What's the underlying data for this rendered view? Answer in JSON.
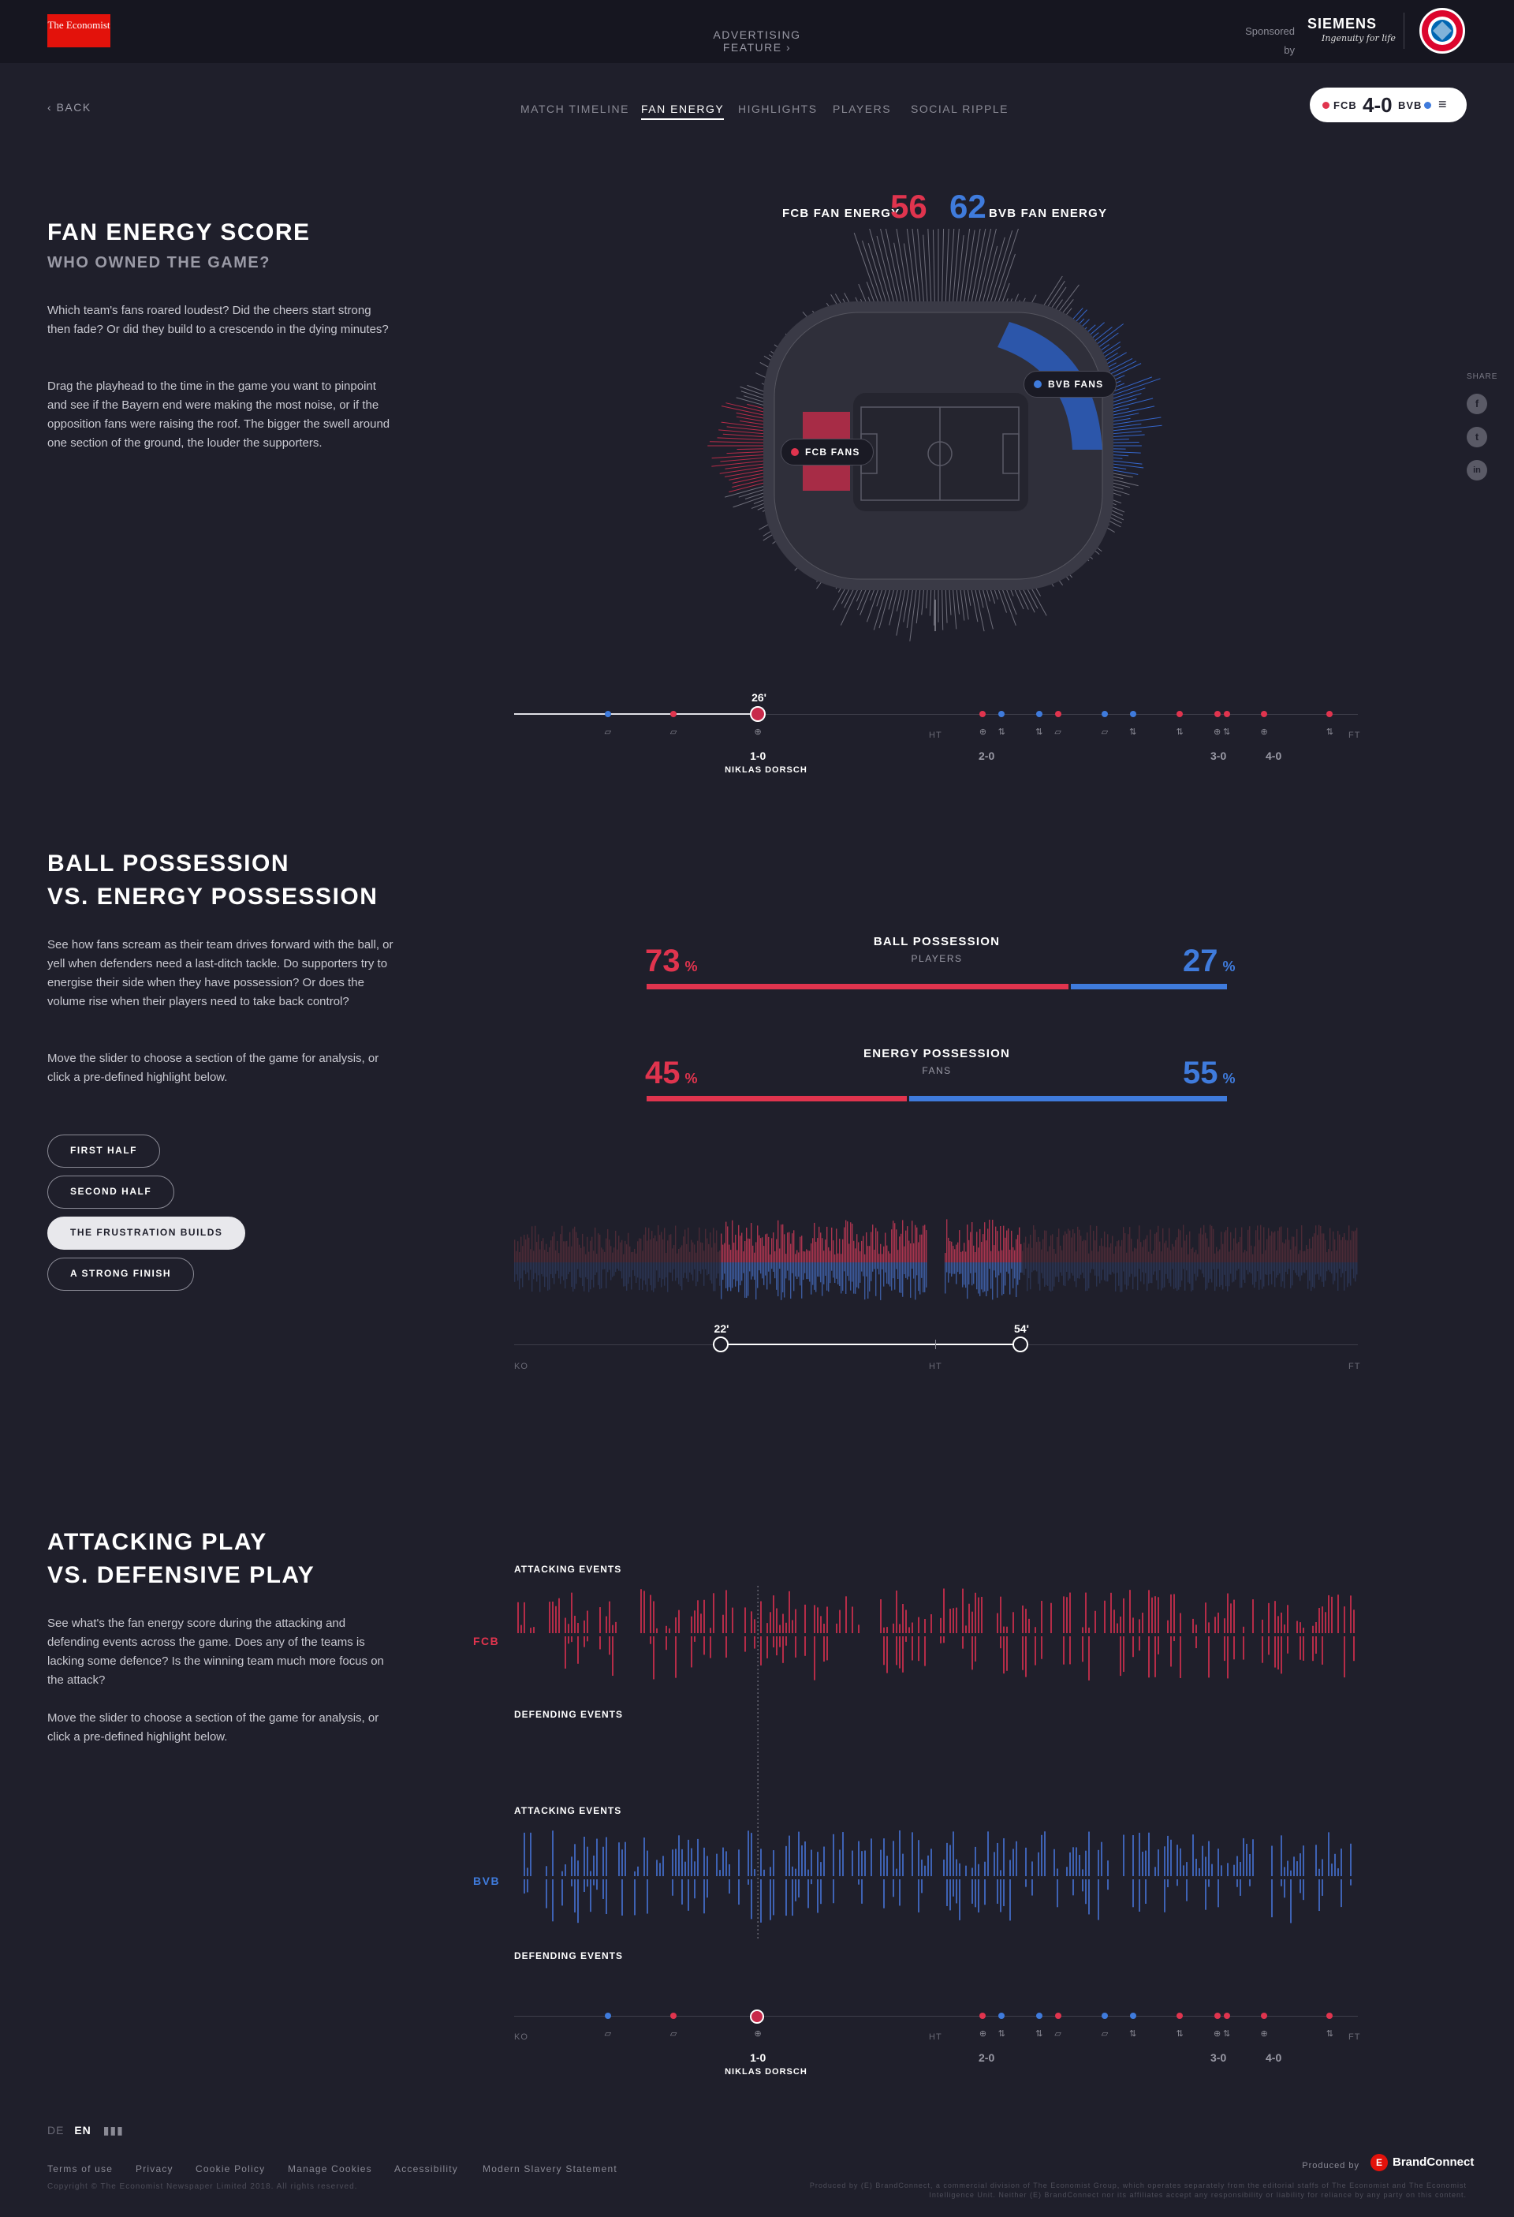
{
  "header": {
    "logo_text": "The Economist",
    "advertising": "ADVERTISING FEATURE",
    "sponsored": "Sponsored by",
    "sponsor_name": "SIEMENS",
    "sponsor_tagline": "Ingenuity for life",
    "crest_label": "FC Bayern München"
  },
  "nav": {
    "back": "BACK",
    "links": [
      "MATCH TIMELINE",
      "FAN ENERGY",
      "HIGHLIGHTS",
      "PLAYERS",
      "SOCIAL RIPPLE"
    ],
    "active": "FAN ENERGY"
  },
  "scoreboard": {
    "home": "FCB",
    "away": "BVB",
    "score": "4-0",
    "home_color": "#e0344e",
    "away_color": "#3f7bdc"
  },
  "share": {
    "label": "SHARE",
    "icons": [
      "facebook-icon",
      "twitter-icon",
      "linkedin-icon"
    ],
    "glyphs": [
      "f",
      "t",
      "in"
    ]
  },
  "fan_energy": {
    "title": "FAN ENERGY SCORE",
    "subtitle": "WHO OWNED THE GAME?",
    "para1": "Which team's fans roared loudest? Did the cheers start strong then fade? Or did they build to a crescendo in the dying minutes?",
    "para2": "Drag the playhead to the time in the game you want to pinpoint and see if the Bayern end were making the most noise, or if the opposition fans were raising the roof. The bigger the swell around one section of the ground, the louder the supporters.",
    "home_label": "FCB FAN ENERGY",
    "home_score": "56",
    "away_label": "BVB FAN ENERGY",
    "away_score": "62",
    "home_tip": "FCB FANS",
    "away_tip": "BVB FANS",
    "playhead_minute": "26'",
    "playhead_minute_value": 26,
    "goal_score": "1-0",
    "goal_scorer": "NIKLAS DORSCH"
  },
  "timeline": {
    "ht": "HT",
    "ft": "FT",
    "ko": "KO",
    "scores": [
      "2-0",
      "3-0",
      "4-0"
    ],
    "events": [
      {
        "min": 10,
        "team": "away",
        "icon": "card"
      },
      {
        "min": 17,
        "team": "home",
        "icon": "card"
      },
      {
        "min": 26,
        "team": "home",
        "icon": "goal"
      },
      {
        "min": 50,
        "team": "home",
        "icon": "goal"
      },
      {
        "min": 52,
        "team": "away",
        "icon": "sub"
      },
      {
        "min": 56,
        "team": "away",
        "icon": "sub"
      },
      {
        "min": 58,
        "team": "home",
        "icon": "card"
      },
      {
        "min": 63,
        "team": "away",
        "icon": "card"
      },
      {
        "min": 66,
        "team": "away",
        "icon": "sub"
      },
      {
        "min": 71,
        "team": "home",
        "icon": "sub"
      },
      {
        "min": 75,
        "team": "home",
        "icon": "goal"
      },
      {
        "min": 76,
        "team": "home",
        "icon": "sub"
      },
      {
        "min": 80,
        "team": "home",
        "icon": "goal"
      },
      {
        "min": 87,
        "team": "home",
        "icon": "sub"
      }
    ]
  },
  "possession": {
    "title_line1": "BALL POSSESSION",
    "title_line2": "VS. ENERGY POSSESSION",
    "para1": "See how fans scream as their team drives forward with the ball, or yell when defenders need a last-ditch tackle. Do supporters try to energise their side when they have possession? Or does the volume rise when their players need to take back control?",
    "para2": "Move the slider to choose a section of the game for analysis, or click a pre-defined highlight below.",
    "ball_title": "BALL POSSESSION",
    "ball_sub": "PLAYERS",
    "ball_home": 73,
    "ball_away": 27,
    "energy_title": "ENERGY POSSESSION",
    "energy_sub": "FANS",
    "energy_home": 45,
    "energy_away": 55,
    "pct": "%",
    "highlights": [
      "FIRST HALF",
      "SECOND HALF",
      "THE FRUSTRATION BUILDS",
      "A STRONG FINISH"
    ],
    "active_highlight": "THE FRUSTRATION BUILDS",
    "range_start": "22'",
    "range_end": "54'",
    "range_start_value": 22,
    "range_end_value": 54
  },
  "attacking": {
    "title_line1": "ATTACKING PLAY",
    "title_line2": "VS. DEFENSIVE PLAY",
    "para1": "See what's the fan energy score during the attacking and defending events across the game. Does any of the teams is lacking some defence? Is the winning team much more focus on the attack?",
    "para2": "Move the slider to choose a section of the game for analysis, or click a pre-defined highlight below.",
    "attacking_label": "ATTACKING EVENTS",
    "defending_label": "DEFENDING EVENTS",
    "home": "FCB",
    "away": "BVB"
  },
  "footer": {
    "lang_de": "DE",
    "lang_en": "EN",
    "links": [
      "Terms of use",
      "Privacy",
      "Cookie Policy",
      "Manage Cookies",
      "Accessibility",
      "Modern Slavery Statement"
    ],
    "copyright": "Copyright © The Economist Newspaper Limited 2018. All rights reserved.",
    "produced": "Produced by",
    "brand": "BrandConnect",
    "disclaimer": "Produced by (E) BrandConnect, a commercial division of The Economist Group, which operates separately from the editorial staffs of The Economist and The Economist Intelligence Unit. Neither (E) BrandConnect nor its affiliates accept any responsibility or liability for reliance by any party on this content."
  }
}
